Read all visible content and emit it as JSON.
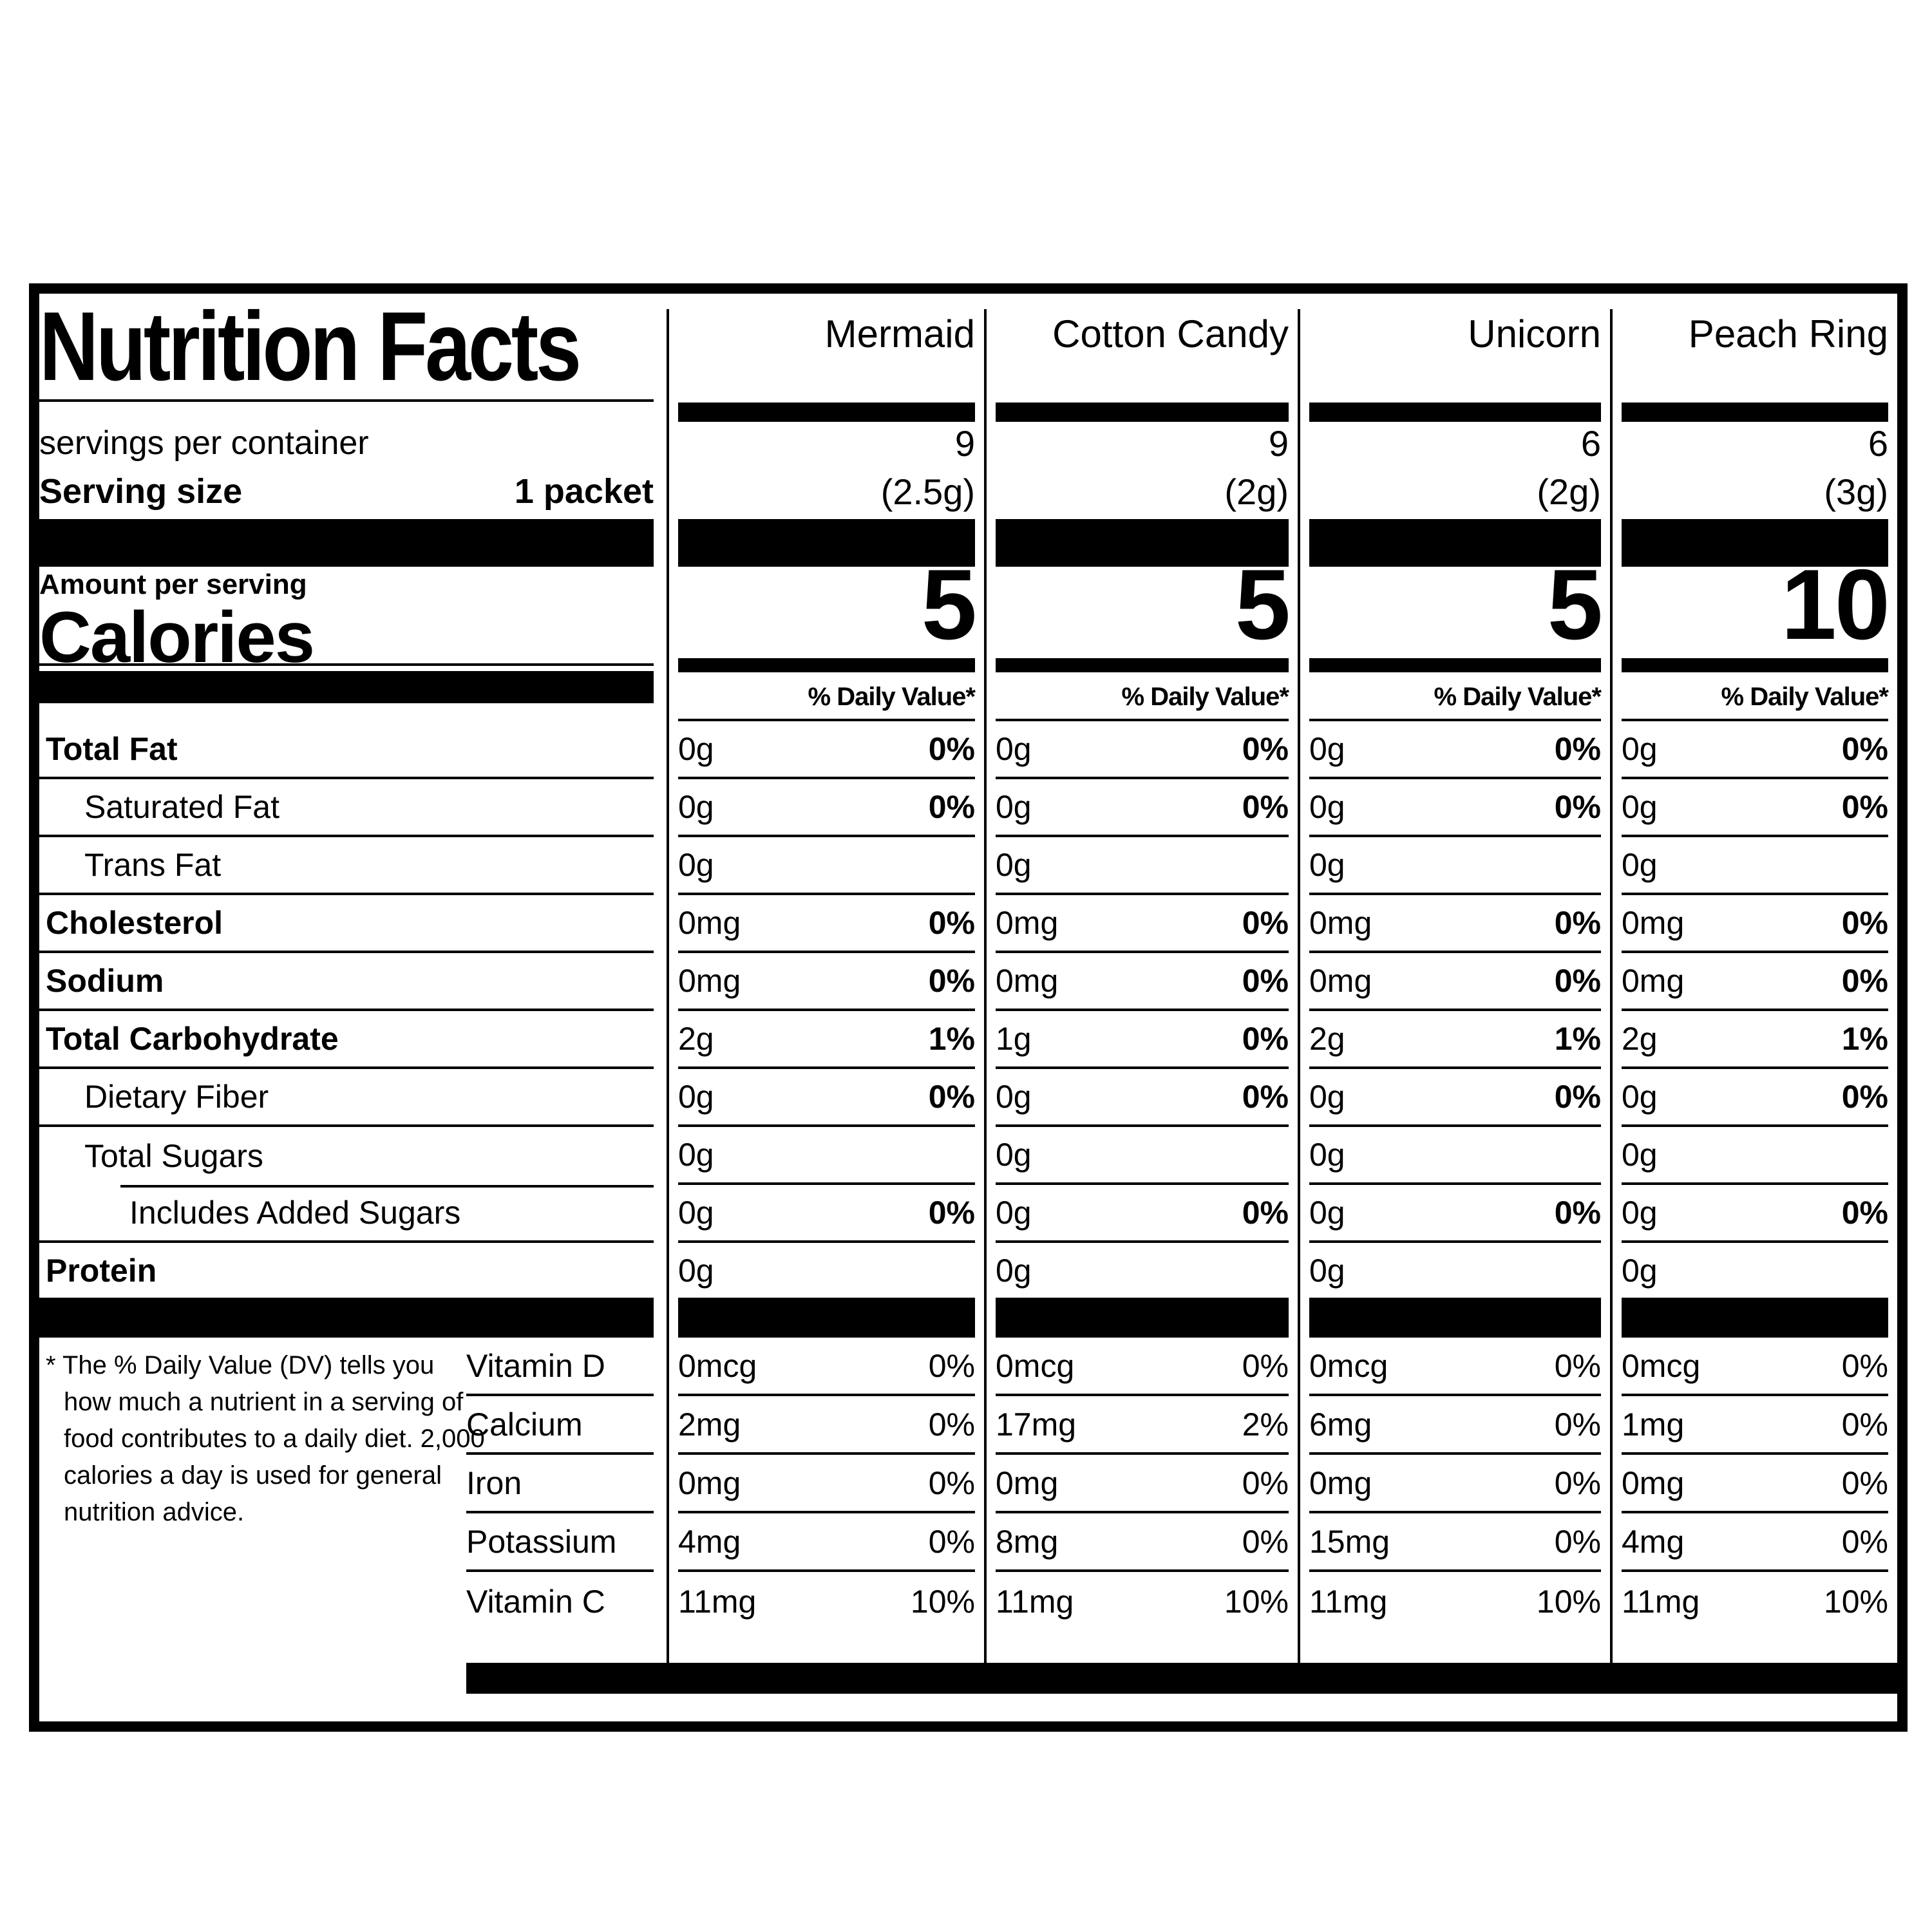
{
  "label": {
    "title": "Nutrition Facts",
    "servings_per_container_label": "servings per container",
    "serving_size_label": "Serving size",
    "serving_size_value": "1 packet",
    "amount_per_serving_label": "Amount per serving",
    "calories_label": "Calories",
    "daily_value_header": "% Daily Value*",
    "footnote": "* The % Daily Value (DV) tells you how much a nutrient in a serving of food contributes to a daily diet. 2,000 calories a day is used for general nutrition advice.",
    "nutrients": [
      {
        "name": "Total Fat",
        "bold": true,
        "indent": 0
      },
      {
        "name": "Saturated Fat",
        "bold": false,
        "indent": 1
      },
      {
        "name": "Trans Fat",
        "bold": false,
        "indent": 1
      },
      {
        "name": "Cholesterol",
        "bold": true,
        "indent": 0
      },
      {
        "name": "Sodium",
        "bold": true,
        "indent": 0
      },
      {
        "name": "Total Carbohydrate",
        "bold": true,
        "indent": 0
      },
      {
        "name": "Dietary Fiber",
        "bold": false,
        "indent": 1
      },
      {
        "name": "Total Sugars",
        "bold": false,
        "indent": 1
      },
      {
        "name": "Includes Added Sugars",
        "bold": false,
        "indent": 2
      },
      {
        "name": "Protein",
        "bold": true,
        "indent": 0
      }
    ],
    "vitamins": [
      "Vitamin D",
      "Calcium",
      "Iron",
      "Potassium",
      "Vitamin C"
    ],
    "columns": [
      {
        "flavor": "Mermaid",
        "servings": "9",
        "serving_grams": "(2.5g)",
        "calories": "5",
        "nutrient_values": [
          [
            "0g",
            "0%"
          ],
          [
            "0g",
            "0%"
          ],
          [
            "0g",
            ""
          ],
          [
            "0mg",
            "0%"
          ],
          [
            "0mg",
            "0%"
          ],
          [
            "2g",
            "1%"
          ],
          [
            "0g",
            "0%"
          ],
          [
            "0g",
            ""
          ],
          [
            "0g",
            "0%"
          ],
          [
            "0g",
            ""
          ]
        ],
        "vitamin_values": [
          [
            "0mcg",
            "0%"
          ],
          [
            "2mg",
            "0%"
          ],
          [
            "0mg",
            "0%"
          ],
          [
            "4mg",
            "0%"
          ],
          [
            "11mg",
            "10%"
          ]
        ]
      },
      {
        "flavor": "Cotton Candy",
        "servings": "9",
        "serving_grams": "(2g)",
        "calories": "5",
        "nutrient_values": [
          [
            "0g",
            "0%"
          ],
          [
            "0g",
            "0%"
          ],
          [
            "0g",
            ""
          ],
          [
            "0mg",
            "0%"
          ],
          [
            "0mg",
            "0%"
          ],
          [
            "1g",
            "0%"
          ],
          [
            "0g",
            "0%"
          ],
          [
            "0g",
            ""
          ],
          [
            "0g",
            "0%"
          ],
          [
            "0g",
            ""
          ]
        ],
        "vitamin_values": [
          [
            "0mcg",
            "0%"
          ],
          [
            "17mg",
            "2%"
          ],
          [
            "0mg",
            "0%"
          ],
          [
            "8mg",
            "0%"
          ],
          [
            "11mg",
            "10%"
          ]
        ]
      },
      {
        "flavor": "Unicorn",
        "servings": "6",
        "serving_grams": "(2g)",
        "calories": "5",
        "nutrient_values": [
          [
            "0g",
            "0%"
          ],
          [
            "0g",
            "0%"
          ],
          [
            "0g",
            ""
          ],
          [
            "0mg",
            "0%"
          ],
          [
            "0mg",
            "0%"
          ],
          [
            "2g",
            "1%"
          ],
          [
            "0g",
            "0%"
          ],
          [
            "0g",
            ""
          ],
          [
            "0g",
            "0%"
          ],
          [
            "0g",
            ""
          ]
        ],
        "vitamin_values": [
          [
            "0mcg",
            "0%"
          ],
          [
            "6mg",
            "0%"
          ],
          [
            "0mg",
            "0%"
          ],
          [
            "15mg",
            "0%"
          ],
          [
            "11mg",
            "10%"
          ]
        ]
      },
      {
        "flavor": "Peach Ring",
        "servings": "6",
        "serving_grams": "(3g)",
        "calories": "10",
        "nutrient_values": [
          [
            "0g",
            "0%"
          ],
          [
            "0g",
            "0%"
          ],
          [
            "0g",
            ""
          ],
          [
            "0mg",
            "0%"
          ],
          [
            "0mg",
            "0%"
          ],
          [
            "2g",
            "1%"
          ],
          [
            "0g",
            "0%"
          ],
          [
            "0g",
            ""
          ],
          [
            "0g",
            "0%"
          ],
          [
            "0g",
            ""
          ]
        ],
        "vitamin_values": [
          [
            "0mcg",
            "0%"
          ],
          [
            "1mg",
            "0%"
          ],
          [
            "0mg",
            "0%"
          ],
          [
            "4mg",
            "0%"
          ],
          [
            "11mg",
            "10%"
          ]
        ]
      }
    ]
  }
}
